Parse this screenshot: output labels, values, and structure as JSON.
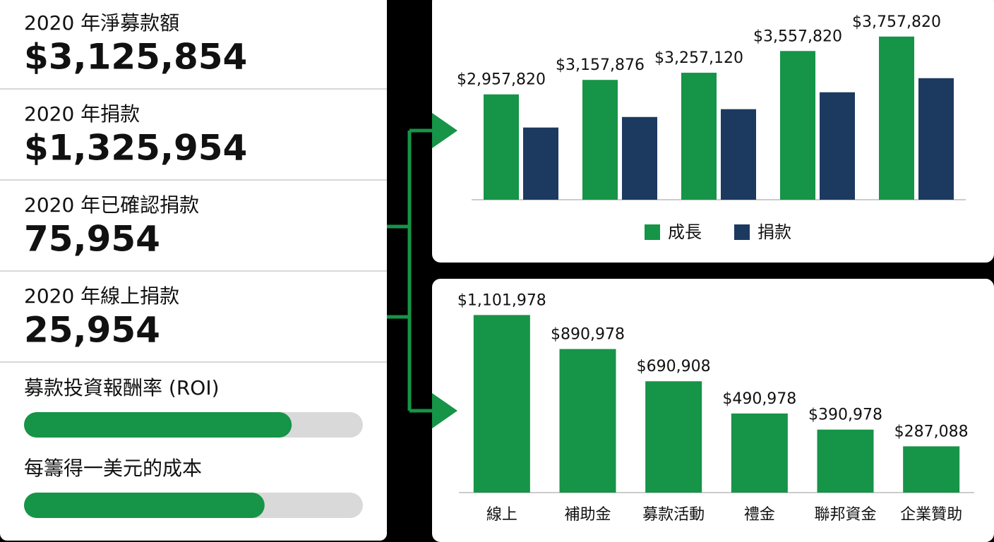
{
  "kpis": [
    {
      "label": "2020 年淨募款額",
      "value": "$3,125,854"
    },
    {
      "label": "2020 年捐款",
      "value": "$1,325,954"
    },
    {
      "label": "2020 年已確認捐款",
      "value": "75,954"
    },
    {
      "label": "2020 年線上捐款",
      "value": "25,954"
    }
  ],
  "progress": [
    {
      "label": "募款投資報酬率 (ROI)",
      "value": 79,
      "xlim": [
        0,
        100
      ],
      "color": "#169447"
    },
    {
      "label": "每籌得一美元的成本",
      "value": 71,
      "xlim": [
        0,
        100
      ],
      "color": "#169447"
    }
  ],
  "chart_data": [
    {
      "type": "bar",
      "categories": [
        null,
        null,
        null,
        null,
        null
      ],
      "series": [
        {
          "name": "成長",
          "color": "#169447",
          "values": [
            2957820,
            3157876,
            3257120,
            3557820,
            3757820
          ],
          "value_labels": [
            "$2,957,820",
            "$3,157,876",
            "$3,257,120",
            "$3,557,820",
            "$3,757,820"
          ]
        },
        {
          "name": "捐款",
          "color": "#1c3a60",
          "values": [
            2499000,
            2645000,
            2753000,
            2987000,
            3182000
          ]
        }
      ],
      "ylim": [
        1500000,
        4000000
      ],
      "legend": "bottom"
    },
    {
      "type": "bar",
      "categories": [
        "線上",
        "補助金",
        "募款活動",
        "禮金",
        "聯邦資金",
        "企業贊助"
      ],
      "values": [
        1101978,
        890978,
        690908,
        490978,
        390978,
        287088
      ],
      "value_labels": [
        "$1,101,978",
        "$890,978",
        "$690,908",
        "$490,978",
        "$390,978",
        "$287,088"
      ],
      "color": "#169447",
      "ylim": [
        0,
        1200000
      ]
    }
  ]
}
